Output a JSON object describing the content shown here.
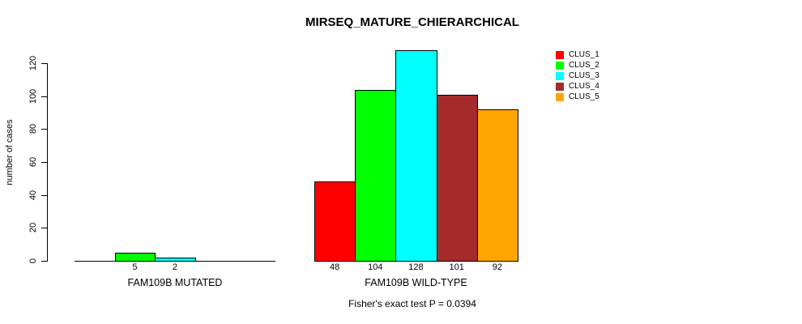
{
  "chart_data": {
    "type": "bar",
    "title": "MIRSEQ_MATURE_CHIERARCHICAL",
    "xlabel": "",
    "ylabel": "number of cases",
    "ylim": [
      0,
      120
    ],
    "yticks": [
      0,
      20,
      40,
      60,
      80,
      100,
      120
    ],
    "grid": false,
    "background_color": "#FFFFFF",
    "axis_color": "#000000",
    "text_color": "#000000",
    "legend_position": "top-right",
    "legend": [
      {
        "label": "CLUS_1",
        "color": "#FF0000"
      },
      {
        "label": "CLUS_2",
        "color": "#00FF00"
      },
      {
        "label": "CLUS_3",
        "color": "#00FFFF"
      },
      {
        "label": "CLUS_4",
        "color": "#A52A2A"
      },
      {
        "label": "CLUS_5",
        "color": "#FFA500"
      }
    ],
    "groups": [
      {
        "label": "FAM109B MUTATED",
        "values": [
          0,
          5,
          2,
          0,
          0
        ],
        "bar_labels": [
          "",
          "5",
          "2",
          "",
          ""
        ]
      },
      {
        "label": "FAM109B WILD-TYPE",
        "values": [
          48,
          104,
          128,
          101,
          92
        ],
        "bar_labels": [
          "48",
          "104",
          "128",
          "101",
          "92"
        ]
      }
    ],
    "footnote": "Fisher's exact test P = 0.0394"
  }
}
